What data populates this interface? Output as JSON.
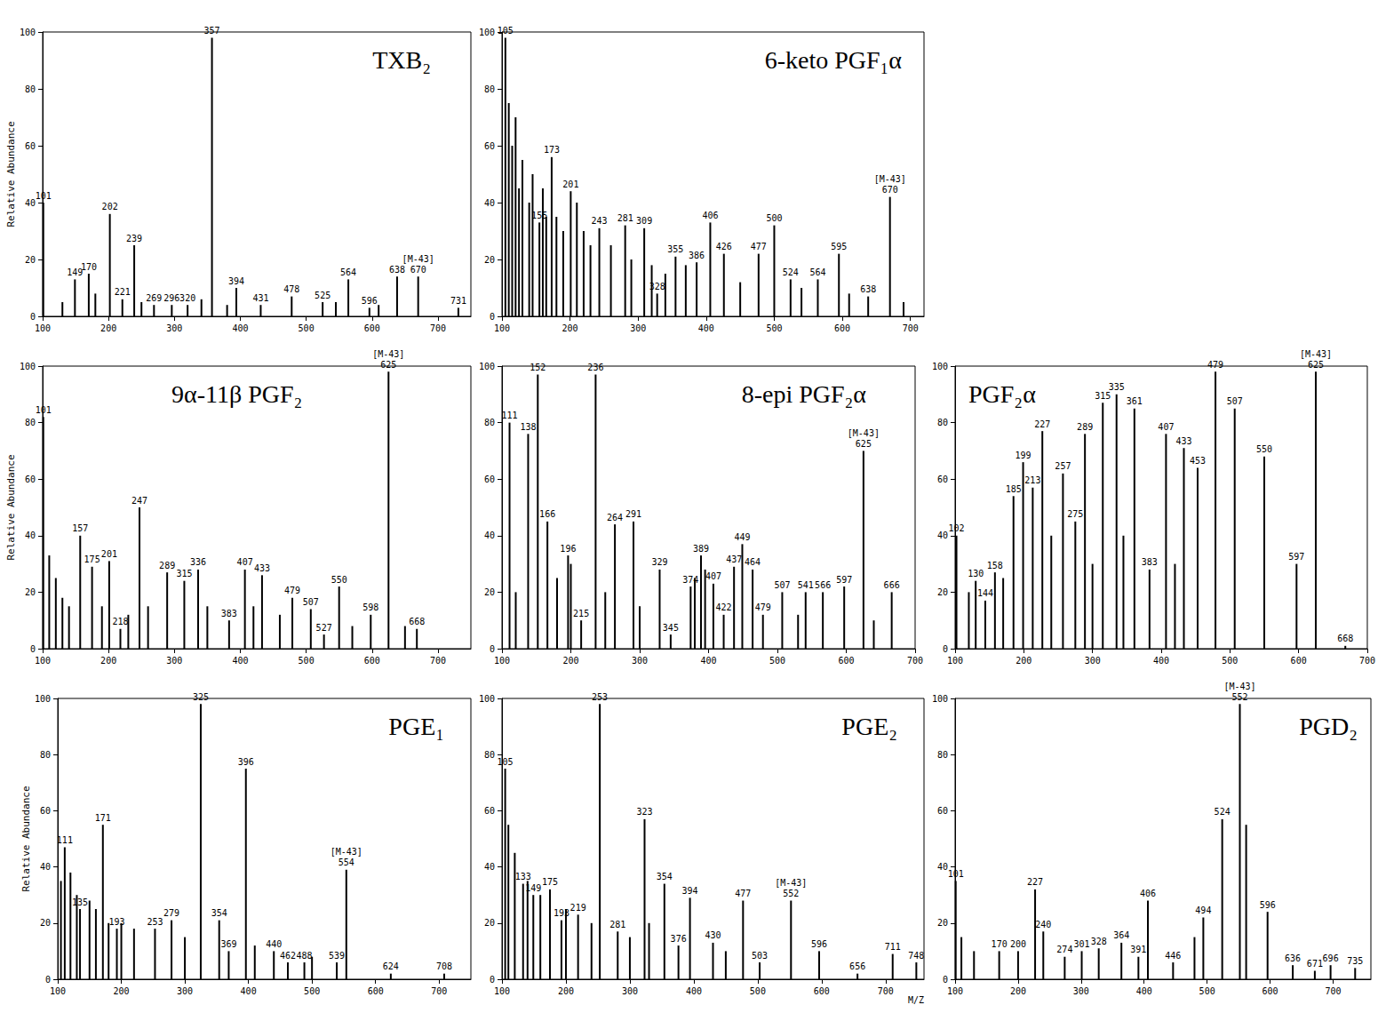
{
  "chart_data": [
    {
      "type": "bar",
      "title": "TXB₂",
      "ylabel": "Relative Abundance",
      "color": "#000000",
      "grid": false,
      "xlim": [
        100,
        750
      ],
      "xticks": [
        100,
        200,
        300,
        400,
        500,
        600,
        700
      ],
      "ylim": [
        0,
        100
      ],
      "yticks": [
        0,
        20,
        40,
        60,
        80,
        100
      ],
      "x": [
        101,
        149,
        170,
        202,
        221,
        239,
        269,
        296,
        320,
        357,
        394,
        431,
        478,
        525,
        564,
        596,
        638,
        670,
        731
      ],
      "values": [
        40,
        13,
        15,
        36,
        6,
        25,
        4,
        4,
        4,
        98,
        10,
        4,
        7,
        5,
        13,
        3,
        14,
        14,
        3
      ],
      "unlabeled_peaks": {
        "x": [
          130,
          180,
          250,
          341,
          380,
          545,
          610
        ],
        "values": [
          5,
          8,
          5,
          6,
          4,
          5,
          4
        ]
      },
      "annotations": [
        {
          "text": "[M-43]",
          "x": 670
        }
      ]
    },
    {
      "type": "bar",
      "title": "6-keto PGF₁α",
      "color": "#000000",
      "grid": false,
      "xlim": [
        100,
        720
      ],
      "xticks": [
        100,
        200,
        300,
        400,
        500,
        600,
        700
      ],
      "ylim": [
        0,
        100
      ],
      "yticks": [
        0,
        20,
        40,
        60,
        80,
        100
      ],
      "x": [
        105,
        155,
        173,
        201,
        243,
        281,
        309,
        328,
        355,
        386,
        406,
        426,
        477,
        500,
        524,
        564,
        595,
        638,
        670
      ],
      "values": [
        98,
        33,
        56,
        44,
        31,
        32,
        31,
        8,
        21,
        19,
        33,
        22,
        22,
        32,
        13,
        13,
        22,
        7,
        42
      ],
      "unlabeled_peaks": {
        "x": [
          110,
          115,
          120,
          125,
          130,
          140,
          145,
          160,
          165,
          180,
          190,
          210,
          220,
          230,
          260,
          290,
          320,
          340,
          370,
          450,
          540,
          610,
          690
        ],
        "values": [
          75,
          60,
          70,
          45,
          55,
          40,
          50,
          45,
          35,
          35,
          30,
          40,
          30,
          25,
          25,
          20,
          18,
          15,
          18,
          12,
          10,
          8,
          5
        ]
      },
      "annotations": [
        {
          "text": "[M-43]",
          "x": 670
        }
      ]
    },
    {
      "type": "bar",
      "title": "9α-11β PGF₂",
      "ylabel": "Relative Abundance",
      "color": "#000000",
      "grid": false,
      "xlim": [
        100,
        750
      ],
      "xticks": [
        100,
        200,
        300,
        400,
        500,
        600,
        700
      ],
      "ylim": [
        0,
        100
      ],
      "yticks": [
        0,
        20,
        40,
        60,
        80,
        100
      ],
      "x": [
        101,
        157,
        175,
        201,
        218,
        247,
        289,
        315,
        336,
        383,
        407,
        433,
        479,
        507,
        527,
        550,
        598,
        625,
        668
      ],
      "values": [
        82,
        40,
        29,
        31,
        7,
        50,
        27,
        24,
        28,
        10,
        28,
        26,
        18,
        14,
        5,
        22,
        12,
        98,
        7
      ],
      "unlabeled_peaks": {
        "x": [
          110,
          120,
          130,
          140,
          190,
          230,
          260,
          350,
          420,
          460,
          570,
          650
        ],
        "values": [
          33,
          25,
          18,
          15,
          15,
          12,
          15,
          15,
          15,
          12,
          8,
          8
        ]
      },
      "annotations": [
        {
          "text": "[M-43]",
          "x": 625
        }
      ]
    },
    {
      "type": "bar",
      "title": "8-epi PGF₂α",
      "color": "#000000",
      "grid": false,
      "xlim": [
        100,
        700
      ],
      "xticks": [
        100,
        200,
        300,
        400,
        500,
        600,
        700
      ],
      "ylim": [
        0,
        100
      ],
      "yticks": [
        0,
        20,
        40,
        60,
        80,
        100
      ],
      "x": [
        111,
        138,
        152,
        166,
        196,
        215,
        236,
        264,
        291,
        329,
        345,
        374,
        389,
        407,
        422,
        437,
        449,
        464,
        479,
        507,
        541,
        566,
        597,
        625,
        666
      ],
      "values": [
        80,
        76,
        97,
        45,
        33,
        10,
        97,
        44,
        45,
        28,
        5,
        22,
        33,
        23,
        12,
        29,
        37,
        28,
        12,
        20,
        20,
        20,
        22,
        70,
        20
      ],
      "unlabeled_peaks": {
        "x": [
          120,
          180,
          200,
          250,
          300,
          380,
          395,
          530,
          640
        ],
        "values": [
          20,
          25,
          30,
          20,
          15,
          25,
          28,
          12,
          10
        ]
      },
      "annotations": [
        {
          "text": "[M-43]",
          "x": 625
        }
      ]
    },
    {
      "type": "bar",
      "title": "PGF₂α",
      "color": "#000000",
      "grid": false,
      "xlim": [
        100,
        700
      ],
      "xticks": [
        100,
        200,
        300,
        400,
        500,
        600,
        700
      ],
      "ylim": [
        0,
        100
      ],
      "yticks": [
        0,
        20,
        40,
        60,
        80,
        100
      ],
      "x": [
        102,
        130,
        144,
        158,
        185,
        199,
        213,
        227,
        257,
        275,
        289,
        315,
        335,
        361,
        383,
        407,
        433,
        453,
        479,
        507,
        550,
        597,
        625,
        668
      ],
      "values": [
        40,
        24,
        17,
        27,
        54,
        66,
        57,
        77,
        62,
        45,
        76,
        87,
        90,
        85,
        28,
        76,
        71,
        64,
        98,
        85,
        68,
        30,
        98,
        1
      ],
      "unlabeled_peaks": {
        "x": [
          120,
          170,
          240,
          300,
          345,
          420
        ],
        "values": [
          20,
          25,
          40,
          30,
          40,
          30
        ]
      },
      "annotations": [
        {
          "text": "[M-43]",
          "x": 625
        }
      ]
    },
    {
      "type": "bar",
      "title": "PGE₁",
      "ylabel": "Relative Abundance",
      "color": "#000000",
      "grid": false,
      "xlim": [
        100,
        750
      ],
      "xticks": [
        100,
        200,
        300,
        400,
        500,
        600,
        700
      ],
      "ylim": [
        0,
        100
      ],
      "yticks": [
        0,
        20,
        40,
        60,
        80,
        100
      ],
      "x": [
        111,
        135,
        171,
        193,
        253,
        279,
        325,
        354,
        369,
        396,
        440,
        462,
        488,
        539,
        554,
        624,
        708
      ],
      "values": [
        47,
        25,
        55,
        18,
        18,
        21,
        98,
        21,
        10,
        75,
        10,
        6,
        6,
        6,
        39,
        2,
        2
      ],
      "unlabeled_peaks": {
        "x": [
          105,
          120,
          130,
          150,
          160,
          180,
          200,
          220,
          300,
          410,
          500
        ],
        "values": [
          35,
          38,
          30,
          28,
          25,
          20,
          20,
          18,
          15,
          12,
          8
        ]
      },
      "annotations": [
        {
          "text": "[M-43]",
          "x": 554
        }
      ]
    },
    {
      "type": "bar",
      "title": "PGE₂",
      "xlabel": "M/Z",
      "color": "#000000",
      "grid": false,
      "xlim": [
        100,
        760
      ],
      "xticks": [
        100,
        200,
        300,
        400,
        500,
        600,
        700
      ],
      "ylim": [
        0,
        100
      ],
      "yticks": [
        0,
        20,
        40,
        60,
        80,
        100
      ],
      "x": [
        105,
        133,
        149,
        175,
        193,
        219,
        253,
        281,
        323,
        354,
        376,
        394,
        430,
        477,
        503,
        552,
        596,
        656,
        711,
        748
      ],
      "values": [
        75,
        34,
        30,
        32,
        21,
        23,
        98,
        17,
        57,
        34,
        12,
        29,
        13,
        28,
        6,
        28,
        10,
        2,
        9,
        6
      ],
      "unlabeled_peaks": {
        "x": [
          110,
          120,
          140,
          160,
          200,
          240,
          300,
          330,
          450
        ],
        "values": [
          55,
          45,
          35,
          30,
          25,
          20,
          15,
          20,
          10
        ]
      },
      "annotations": [
        {
          "text": "[M-43]",
          "x": 552
        }
      ]
    },
    {
      "type": "bar",
      "title": "PGD₂",
      "color": "#000000",
      "grid": false,
      "xlim": [
        100,
        760
      ],
      "xticks": [
        100,
        200,
        300,
        400,
        500,
        600,
        700
      ],
      "ylim": [
        0,
        100
      ],
      "yticks": [
        0,
        20,
        40,
        60,
        80,
        100
      ],
      "x": [
        101,
        170,
        200,
        227,
        240,
        274,
        301,
        328,
        364,
        391,
        406,
        446,
        494,
        524,
        552,
        596,
        636,
        671,
        696,
        735
      ],
      "values": [
        35,
        10,
        10,
        32,
        17,
        8,
        10,
        11,
        13,
        8,
        28,
        6,
        22,
        57,
        98,
        24,
        5,
        3,
        5,
        4
      ],
      "unlabeled_peaks": {
        "x": [
          110,
          130,
          480,
          562
        ],
        "values": [
          15,
          10,
          15,
          55
        ]
      },
      "annotations": [
        {
          "text": "[M-43]",
          "x": 552
        }
      ]
    }
  ]
}
